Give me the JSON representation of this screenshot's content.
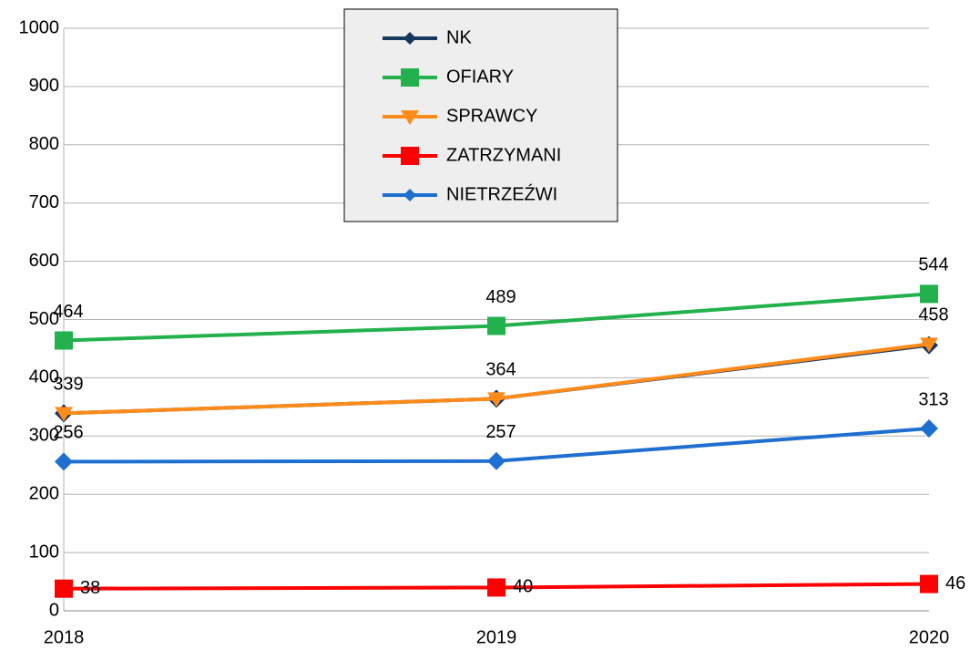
{
  "chart_data": {
    "type": "line",
    "categories": [
      "2018",
      "2019",
      "2020"
    ],
    "series": [
      {
        "name": "NK",
        "color": "#17375e",
        "marker": "diamond",
        "values": [
          339,
          364,
          456
        ]
      },
      {
        "name": "OFIARY",
        "color": "#22b14c",
        "marker": "square",
        "labels": "above",
        "values": [
          464,
          489,
          544
        ]
      },
      {
        "name": "SPRAWCY",
        "color": "#ff8c1a",
        "marker": "triangle-down",
        "labels": "above",
        "values": [
          339,
          364,
          458
        ]
      },
      {
        "name": "ZATRZYMANI",
        "color": "#ff0000",
        "marker": "square",
        "labels": "right",
        "values": [
          38,
          40,
          46
        ]
      },
      {
        "name": "NIETRZEŹWI",
        "color": "#1e6fd0",
        "marker": "diamond",
        "labels": "above",
        "values": [
          256,
          257,
          313
        ]
      }
    ],
    "ylim": [
      0,
      1000
    ],
    "yticks": [
      0,
      100,
      200,
      300,
      400,
      500,
      600,
      700,
      800,
      900,
      1000
    ],
    "grid": true,
    "legend": "top"
  }
}
